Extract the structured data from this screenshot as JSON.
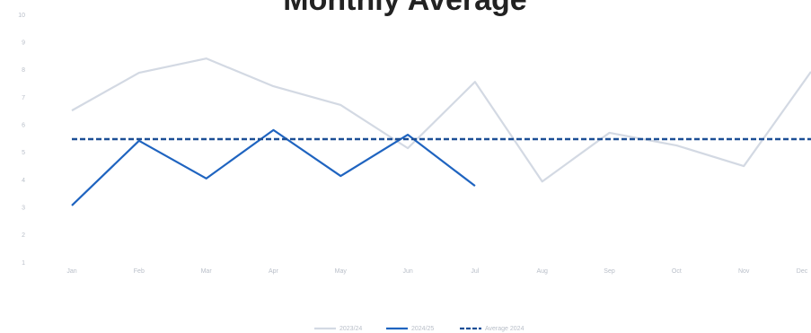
{
  "chart_data": {
    "type": "line",
    "title": "Monthly Average",
    "categories": [
      "Jan",
      "Feb",
      "Mar",
      "Apr",
      "May",
      "Jun",
      "Jul",
      "Aug",
      "Sep",
      "Oct",
      "Nov",
      "Dec"
    ],
    "series": [
      {
        "name": "2023/24",
        "color": "#d3d9e3",
        "dash": false,
        "values": [
          6.54,
          7.91,
          8.43,
          7.42,
          6.74,
          5.17,
          7.58,
          3.96,
          5.73,
          5.27,
          4.52,
          7.95
        ]
      },
      {
        "name": "2024/25",
        "color": "#1f64c0",
        "dash": false,
        "values": [
          3.09,
          5.44,
          4.07,
          5.83,
          4.16,
          5.66,
          3.8,
          null,
          null,
          null,
          null,
          null
        ]
      },
      {
        "name": "Average 2024",
        "color": "#1c4f96",
        "dash": true,
        "values": [
          5.5,
          5.5,
          5.5,
          5.5,
          5.5,
          5.5,
          5.5,
          5.5,
          5.5,
          5.5,
          5.5,
          5.5
        ]
      }
    ],
    "ylim": [
      1,
      10
    ],
    "yticks": [
      1,
      2,
      3,
      4,
      5,
      6,
      7,
      8,
      9,
      10
    ],
    "grid": false,
    "legend": "bottom"
  }
}
